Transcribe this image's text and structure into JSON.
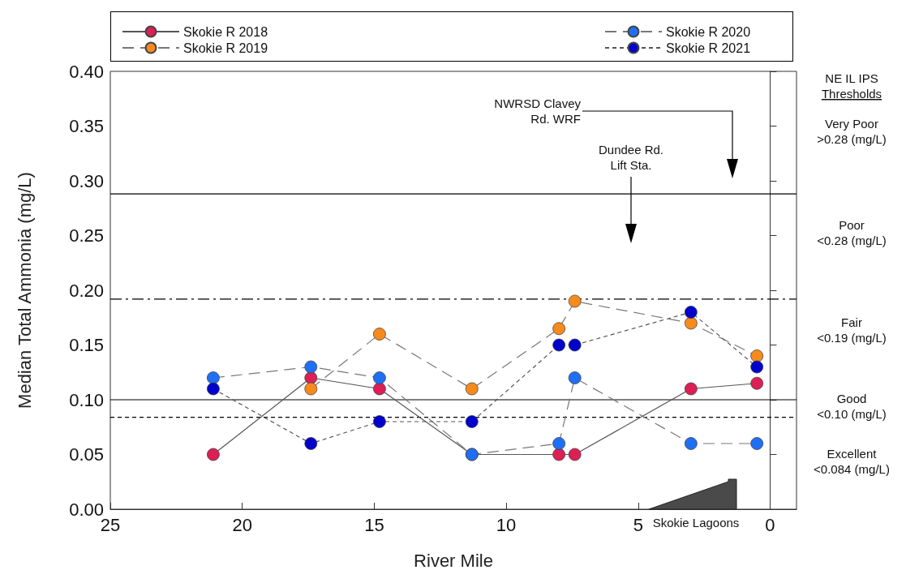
{
  "chart_data": {
    "type": "line",
    "xlabel": "River Mile",
    "ylabel": "Median Total Ammonia (mg/L)",
    "xlim": [
      25,
      -1
    ],
    "xticks": [
      25,
      20,
      15,
      10,
      5,
      0
    ],
    "ylim": [
      0,
      0.4
    ],
    "yticks": [
      {
        "value": 0,
        "label": "0.00"
      },
      {
        "value": 0.05,
        "label": "0.05"
      },
      {
        "value": 0.1,
        "label": "0.10"
      },
      {
        "value": 0.15,
        "label": "0.15"
      },
      {
        "value": 0.2,
        "label": "0.20"
      },
      {
        "value": 0.25,
        "label": "0.25"
      },
      {
        "value": 0.3,
        "label": "0.30"
      },
      {
        "value": 0.35,
        "label": "0.35"
      },
      {
        "value": 0.4,
        "label": "0.40"
      }
    ],
    "x": [
      21.1,
      17.4,
      14.8,
      11.3,
      8.0,
      7.4,
      3.0,
      0.5
    ],
    "marker": "circle",
    "legend": "top",
    "grid": false,
    "series": [
      {
        "name": "Skokie R 2018",
        "color": "#dc1f55",
        "line_style": "solid",
        "values": [
          0.05,
          0.12,
          0.11,
          0.05,
          0.05,
          0.05,
          0.11,
          0.115
        ]
      },
      {
        "name": "Skokie R 2019",
        "color": "#f78a1d",
        "line_style": "dashed",
        "values": [
          null,
          0.11,
          0.16,
          0.11,
          0.165,
          0.19,
          0.17,
          0.14
        ]
      },
      {
        "name": "Skokie R 2020",
        "color": "#1f6ff5",
        "line_style": "dashed",
        "values": [
          0.12,
          0.13,
          0.12,
          0.05,
          0.06,
          0.12,
          0.06,
          0.06
        ]
      },
      {
        "name": "Skokie R 2021",
        "color": "#0000cc",
        "line_style": "dotted",
        "values": [
          0.11,
          0.06,
          0.08,
          0.08,
          0.15,
          0.15,
          0.18,
          0.13
        ]
      }
    ],
    "ref_lines": [
      {
        "axis": "y",
        "value": 0.288,
        "line_style": "solid"
      },
      {
        "axis": "y",
        "value": 0.192,
        "line_style": "dashdot"
      },
      {
        "axis": "y",
        "value": 0.1,
        "line_style": "solid"
      },
      {
        "axis": "y",
        "value": 0.084,
        "line_style": "dotted"
      }
    ],
    "annotations": [
      "NE IL IPS\nThresholds",
      "Very Poor\n>0.28 (mg/L)",
      "Poor\n<0.28 (mg/L)",
      "Fair\n<0.19 (mg/L)",
      "Good\n<0.10 (mg/L)",
      "Excellent\n<0.084 (mg/L)",
      "NWRSD Clavey\nRd. WRF",
      "Dundee Rd.\nLift Sta.",
      "Skokie Lagoons"
    ]
  }
}
